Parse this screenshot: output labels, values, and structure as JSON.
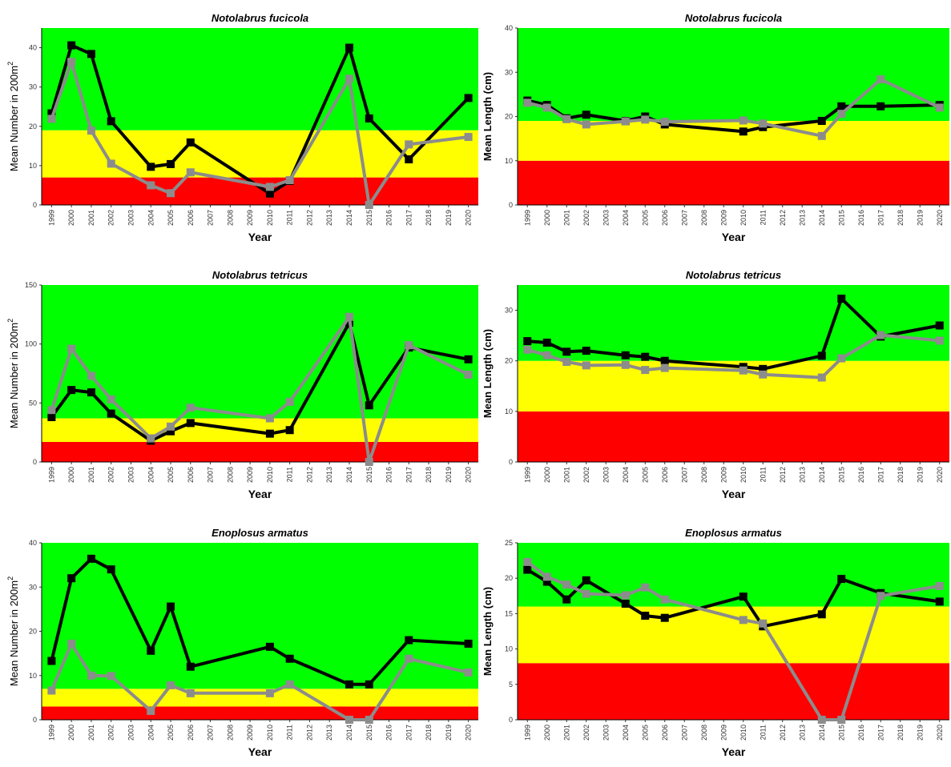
{
  "chart_data": [
    {
      "type": "line",
      "title": "Notolabrus fucicola",
      "xlabel": "Year",
      "ylabel": "Mean Number in 200m",
      "ylabel_sup": "2",
      "ylabel_bold": false,
      "ylim": [
        0,
        45
      ],
      "yticks": [
        0,
        10,
        20,
        30,
        40
      ],
      "categories": [
        "1999",
        "2000",
        "2001",
        "2002",
        "2003",
        "2004",
        "2005",
        "2006",
        "2007",
        "2008",
        "2009",
        "2010",
        "2011",
        "2012",
        "2013",
        "2014",
        "2015",
        "2016",
        "2017",
        "2018",
        "2019",
        "2020"
      ],
      "bands": [
        {
          "from": 0,
          "to": 7,
          "color": "#ff0000"
        },
        {
          "from": 7,
          "to": 19,
          "color": "#ffff00"
        },
        {
          "from": 19,
          "to": 45,
          "color": "#00ff00"
        }
      ],
      "series": [
        {
          "color": "#000000",
          "points": [
            [
              "1999",
              23.3
            ],
            [
              "2000",
              40.6
            ],
            [
              "2001",
              38.4
            ],
            [
              "2002",
              21.3
            ],
            [
              "2004",
              9.7
            ],
            [
              "2005",
              10.4
            ],
            [
              "2006",
              15.9
            ],
            [
              "2010",
              2.9
            ],
            [
              "2011",
              6.1
            ],
            [
              "2014",
              40.0
            ],
            [
              "2015",
              22.0
            ],
            [
              "2017",
              11.6
            ],
            [
              "2020",
              27.2
            ]
          ]
        },
        {
          "color": "#8c8c8c",
          "points": [
            [
              "1999",
              21.9
            ],
            [
              "2000",
              36.4
            ],
            [
              "2001",
              18.9
            ],
            [
              "2002",
              10.5
            ],
            [
              "2004",
              5.0
            ],
            [
              "2005",
              3.0
            ],
            [
              "2006",
              8.3
            ],
            [
              "2010",
              4.6
            ],
            [
              "2011",
              6.3
            ],
            [
              "2014",
              32.1
            ],
            [
              "2015",
              0.0
            ],
            [
              "2017",
              15.4
            ],
            [
              "2020",
              17.3
            ]
          ]
        }
      ]
    },
    {
      "type": "line",
      "title": "Notolabrus fucicola",
      "xlabel": "Year",
      "ylabel": "Mean Length (cm)",
      "ylabel_sup": "",
      "ylabel_bold": true,
      "ylim": [
        0,
        40
      ],
      "yticks": [
        0,
        10,
        20,
        30,
        40
      ],
      "categories": [
        "1999",
        "2000",
        "2001",
        "2002",
        "2003",
        "2004",
        "2005",
        "2006",
        "2007",
        "2008",
        "2009",
        "2010",
        "2011",
        "2012",
        "2013",
        "2014",
        "2015",
        "2016",
        "2017",
        "2018",
        "2019",
        "2020"
      ],
      "bands": [
        {
          "from": 0,
          "to": 10,
          "color": "#ff0000"
        },
        {
          "from": 10,
          "to": 19,
          "color": "#ffff00"
        },
        {
          "from": 19,
          "to": 40,
          "color": "#00ff00"
        }
      ],
      "series": [
        {
          "color": "#000000",
          "points": [
            [
              "1999",
              23.6
            ],
            [
              "2000",
              22.6
            ],
            [
              "2001",
              19.6
            ],
            [
              "2002",
              20.4
            ],
            [
              "2004",
              19.0
            ],
            [
              "2005",
              20.0
            ],
            [
              "2006",
              18.2
            ],
            [
              "2010",
              16.6
            ],
            [
              "2011",
              17.6
            ],
            [
              "2014",
              19.0
            ],
            [
              "2015",
              22.3
            ],
            [
              "2017",
              22.3
            ],
            [
              "2020",
              22.6
            ]
          ]
        },
        {
          "color": "#8c8c8c",
          "points": [
            [
              "1999",
              23.1
            ],
            [
              "2000",
              22.0
            ],
            [
              "2001",
              19.4
            ],
            [
              "2002",
              18.2
            ],
            [
              "2004",
              18.9
            ],
            [
              "2005",
              19.3
            ],
            [
              "2006",
              18.8
            ],
            [
              "2010",
              19.1
            ],
            [
              "2011",
              18.4
            ],
            [
              "2014",
              15.6
            ],
            [
              "2015",
              20.6
            ],
            [
              "2017",
              28.4
            ],
            [
              "2020",
              22.0
            ]
          ]
        }
      ]
    },
    {
      "type": "line",
      "title": "Notolabrus tetricus",
      "xlabel": "Year",
      "ylabel": "Mean Number in 200m",
      "ylabel_sup": "2",
      "ylabel_bold": false,
      "ylim": [
        0,
        150
      ],
      "yticks": [
        0,
        50,
        100,
        150
      ],
      "categories": [
        "1999",
        "2000",
        "2001",
        "2002",
        "2003",
        "2004",
        "2005",
        "2006",
        "2007",
        "2008",
        "2009",
        "2010",
        "2011",
        "2012",
        "2013",
        "2014",
        "2015",
        "2016",
        "2017",
        "2018",
        "2019",
        "2020"
      ],
      "bands": [
        {
          "from": 0,
          "to": 17,
          "color": "#ff0000"
        },
        {
          "from": 17,
          "to": 37,
          "color": "#ffff00"
        },
        {
          "from": 37,
          "to": 150,
          "color": "#00ff00"
        }
      ],
      "series": [
        {
          "color": "#000000",
          "points": [
            [
              "1999",
              38
            ],
            [
              "2000",
              61
            ],
            [
              "2001",
              59
            ],
            [
              "2002",
              41
            ],
            [
              "2004",
              18
            ],
            [
              "2005",
              26
            ],
            [
              "2006",
              33
            ],
            [
              "2010",
              24
            ],
            [
              "2011",
              27
            ],
            [
              "2014",
              118
            ],
            [
              "2015",
              48
            ],
            [
              "2017",
              97
            ],
            [
              "2020",
              87
            ]
          ]
        },
        {
          "color": "#8c8c8c",
          "points": [
            [
              "1999",
              44
            ],
            [
              "2000",
              96
            ],
            [
              "2001",
              73
            ],
            [
              "2002",
              53
            ],
            [
              "2004",
              20
            ],
            [
              "2005",
              30
            ],
            [
              "2006",
              46
            ],
            [
              "2010",
              37
            ],
            [
              "2011",
              51
            ],
            [
              "2014",
              123
            ],
            [
              "2015",
              0
            ],
            [
              "2017",
              99
            ],
            [
              "2020",
              74
            ]
          ]
        }
      ]
    },
    {
      "type": "line",
      "title": "Notolabrus tetricus",
      "xlabel": "Year",
      "ylabel": "Mean Length (cm)",
      "ylabel_sup": "",
      "ylabel_bold": true,
      "ylim": [
        0,
        35
      ],
      "yticks": [
        0,
        10,
        20,
        30
      ],
      "categories": [
        "1999",
        "2000",
        "2001",
        "2002",
        "2003",
        "2004",
        "2005",
        "2006",
        "2007",
        "2008",
        "2009",
        "2010",
        "2011",
        "2012",
        "2013",
        "2014",
        "2015",
        "2016",
        "2017",
        "2018",
        "2019",
        "2020"
      ],
      "bands": [
        {
          "from": 0,
          "to": 10,
          "color": "#ff0000"
        },
        {
          "from": 10,
          "to": 20,
          "color": "#ffff00"
        },
        {
          "from": 20,
          "to": 35,
          "color": "#00ff00"
        }
      ],
      "series": [
        {
          "color": "#000000",
          "points": [
            [
              "1999",
              23.9
            ],
            [
              "2000",
              23.6
            ],
            [
              "2001",
              21.8
            ],
            [
              "2002",
              22.0
            ],
            [
              "2004",
              21.1
            ],
            [
              "2005",
              20.8
            ],
            [
              "2006",
              20.0
            ],
            [
              "2010",
              18.8
            ],
            [
              "2011",
              18.4
            ],
            [
              "2014",
              21.0
            ],
            [
              "2015",
              32.3
            ],
            [
              "2017",
              24.8
            ],
            [
              "2020",
              27.0
            ]
          ]
        },
        {
          "color": "#8c8c8c",
          "points": [
            [
              "1999",
              22.2
            ],
            [
              "2000",
              21.1
            ],
            [
              "2001",
              19.8
            ],
            [
              "2002",
              19.1
            ],
            [
              "2004",
              19.2
            ],
            [
              "2005",
              18.2
            ],
            [
              "2006",
              18.6
            ],
            [
              "2010",
              18.1
            ],
            [
              "2011",
              17.3
            ],
            [
              "2014",
              16.7
            ],
            [
              "2015",
              20.5
            ],
            [
              "2017",
              25.1
            ],
            [
              "2020",
              24.0
            ]
          ]
        }
      ]
    },
    {
      "type": "line",
      "title": "Enoplosus armatus",
      "xlabel": "Year",
      "ylabel": "Mean Number in 200m",
      "ylabel_sup": "2",
      "ylabel_bold": false,
      "ylim": [
        0,
        40
      ],
      "yticks": [
        0,
        10,
        20,
        30,
        40
      ],
      "categories": [
        "1999",
        "2000",
        "2001",
        "2002",
        "2003",
        "2004",
        "2005",
        "2006",
        "2007",
        "2008",
        "2009",
        "2010",
        "2011",
        "2012",
        "2013",
        "2014",
        "2015",
        "2016",
        "2017",
        "2018",
        "2019",
        "2020"
      ],
      "bands": [
        {
          "from": 0,
          "to": 3,
          "color": "#ff0000"
        },
        {
          "from": 3,
          "to": 7,
          "color": "#ffff00"
        },
        {
          "from": 7,
          "to": 40,
          "color": "#00ff00"
        }
      ],
      "series": [
        {
          "color": "#000000",
          "points": [
            [
              "1999",
              13.3
            ],
            [
              "2000",
              32.0
            ],
            [
              "2001",
              36.4
            ],
            [
              "2002",
              34.0
            ],
            [
              "2004",
              15.6
            ],
            [
              "2005",
              25.6
            ],
            [
              "2006",
              12.0
            ],
            [
              "2010",
              16.5
            ],
            [
              "2011",
              13.8
            ],
            [
              "2014",
              8.0
            ],
            [
              "2015",
              8.0
            ],
            [
              "2017",
              18.0
            ],
            [
              "2020",
              17.2
            ]
          ]
        },
        {
          "color": "#8c8c8c",
          "points": [
            [
              "1999",
              6.6
            ],
            [
              "2000",
              17.2
            ],
            [
              "2001",
              10.0
            ],
            [
              "2002",
              9.9
            ],
            [
              "2004",
              2.0
            ],
            [
              "2005",
              7.8
            ],
            [
              "2006",
              6.0
            ],
            [
              "2010",
              6.0
            ],
            [
              "2011",
              8.0
            ],
            [
              "2014",
              0.0
            ],
            [
              "2015",
              0.0
            ],
            [
              "2017",
              13.8
            ],
            [
              "2020",
              10.7
            ]
          ]
        }
      ]
    },
    {
      "type": "line",
      "title": "Enoplosus armatus",
      "xlabel": "Year",
      "ylabel": "Mean Length (cm)",
      "ylabel_sup": "",
      "ylabel_bold": true,
      "ylim": [
        0,
        25
      ],
      "yticks": [
        0,
        5,
        10,
        15,
        20,
        25
      ],
      "categories": [
        "1999",
        "2000",
        "2001",
        "2002",
        "2003",
        "2004",
        "2005",
        "2006",
        "2007",
        "2008",
        "2009",
        "2010",
        "2011",
        "2012",
        "2013",
        "2014",
        "2015",
        "2016",
        "2017",
        "2018",
        "2019",
        "2020"
      ],
      "bands": [
        {
          "from": 0,
          "to": 8,
          "color": "#ff0000"
        },
        {
          "from": 8,
          "to": 16,
          "color": "#ffff00"
        },
        {
          "from": 16,
          "to": 25,
          "color": "#00ff00"
        }
      ],
      "series": [
        {
          "color": "#000000",
          "points": [
            [
              "1999",
              21.2
            ],
            [
              "2000",
              19.5
            ],
            [
              "2001",
              17.0
            ],
            [
              "2002",
              19.7
            ],
            [
              "2004",
              16.4
            ],
            [
              "2005",
              14.7
            ],
            [
              "2006",
              14.4
            ],
            [
              "2010",
              17.4
            ],
            [
              "2011",
              13.2
            ],
            [
              "2014",
              14.9
            ],
            [
              "2015",
              19.9
            ],
            [
              "2017",
              17.9
            ],
            [
              "2020",
              16.7
            ]
          ]
        },
        {
          "color": "#8c8c8c",
          "points": [
            [
              "1999",
              22.3
            ],
            [
              "2000",
              20.2
            ],
            [
              "2001",
              19.1
            ],
            [
              "2002",
              17.8
            ],
            [
              "2004",
              17.6
            ],
            [
              "2005",
              18.7
            ],
            [
              "2006",
              17.0
            ],
            [
              "2010",
              14.1
            ],
            [
              "2011",
              13.6
            ],
            [
              "2014",
              0.0
            ],
            [
              "2015",
              0.0
            ],
            [
              "2017",
              17.5
            ],
            [
              "2020",
              18.9
            ]
          ]
        }
      ]
    }
  ]
}
